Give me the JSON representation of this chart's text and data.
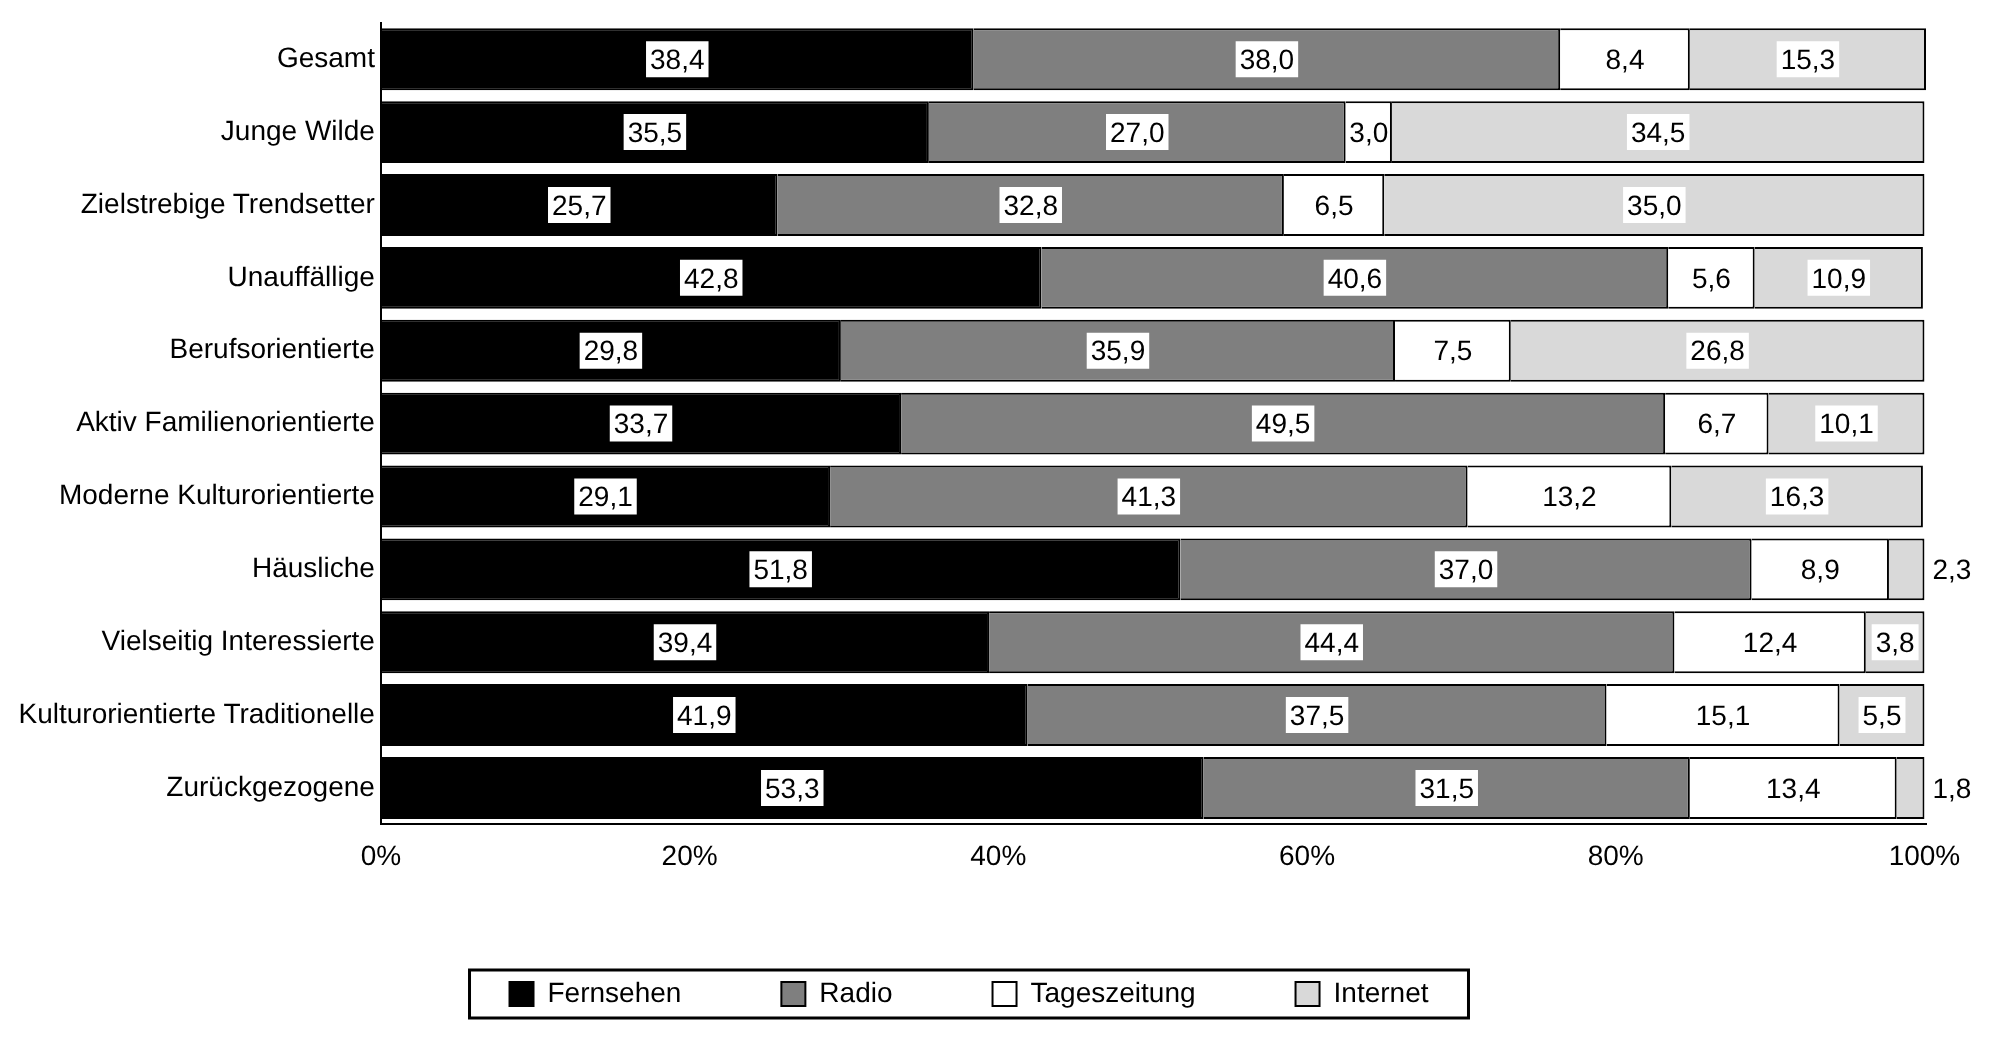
{
  "chart_data": {
    "type": "bar",
    "orientation": "horizontal",
    "stacked": true,
    "legend": "bottom",
    "grid": false,
    "categories": [
      "Gesamt",
      "Junge Wilde",
      "Zielstrebige Trendsetter",
      "Unauffällige",
      "Berufsorientierte",
      "Aktiv Familienorientierte",
      "Moderne Kulturorientierte",
      "Häusliche",
      "Vielseitig Interessierte",
      "Kulturorientierte Traditionelle",
      "Zurückgezogene"
    ],
    "xlim": [
      0,
      100.1
    ],
    "xticks": [
      {
        "value": 0,
        "label": "0%"
      },
      {
        "value": 20,
        "label": "20%"
      },
      {
        "value": 40,
        "label": "40%"
      },
      {
        "value": 60,
        "label": "60%"
      },
      {
        "value": 80,
        "label": "80%"
      },
      {
        "value": 100,
        "label": "100%"
      }
    ],
    "series": [
      {
        "name": "Fernsehen",
        "color": "#000000",
        "values": [
          38.4,
          35.5,
          25.7,
          42.8,
          29.8,
          33.7,
          29.1,
          51.8,
          39.4,
          41.9,
          53.3
        ],
        "value_labels": [
          "38,4",
          "35,5",
          "25,7",
          "42,8",
          "29,8",
          "33,7",
          "29,1",
          "51,8",
          "39,4",
          "41,9",
          "53,3"
        ]
      },
      {
        "name": "Radio",
        "color": "#7f7f7f",
        "values": [
          38.0,
          27.0,
          32.8,
          40.6,
          35.9,
          49.5,
          41.3,
          37.0,
          44.4,
          37.5,
          31.5
        ],
        "value_labels": [
          "38,0",
          "27,0",
          "32,8",
          "40,6",
          "35,9",
          "49,5",
          "41,3",
          "37,0",
          "44,4",
          "37,5",
          "31,5"
        ]
      },
      {
        "name": "Tageszeitung",
        "color": "#ffffff",
        "values": [
          8.4,
          3.0,
          6.5,
          5.6,
          7.5,
          6.7,
          13.2,
          8.9,
          12.4,
          15.1,
          13.4
        ],
        "value_labels": [
          "8,4",
          "3,0",
          "6,5",
          "5,6",
          "7,5",
          "6,7",
          "13,2",
          "8,9",
          "12,4",
          "15,1",
          "13,4"
        ]
      },
      {
        "name": "Internet",
        "color": "#d9d9d9",
        "values": [
          15.3,
          34.5,
          35.0,
          10.9,
          26.8,
          10.1,
          16.3,
          2.3,
          3.8,
          5.5,
          1.8
        ],
        "value_labels": [
          "15,3",
          "34,5",
          "35,0",
          "10,9",
          "26,8",
          "10,1",
          "16,3",
          "2,3",
          "3,8",
          "5,5",
          "1,8"
        ]
      }
    ]
  }
}
